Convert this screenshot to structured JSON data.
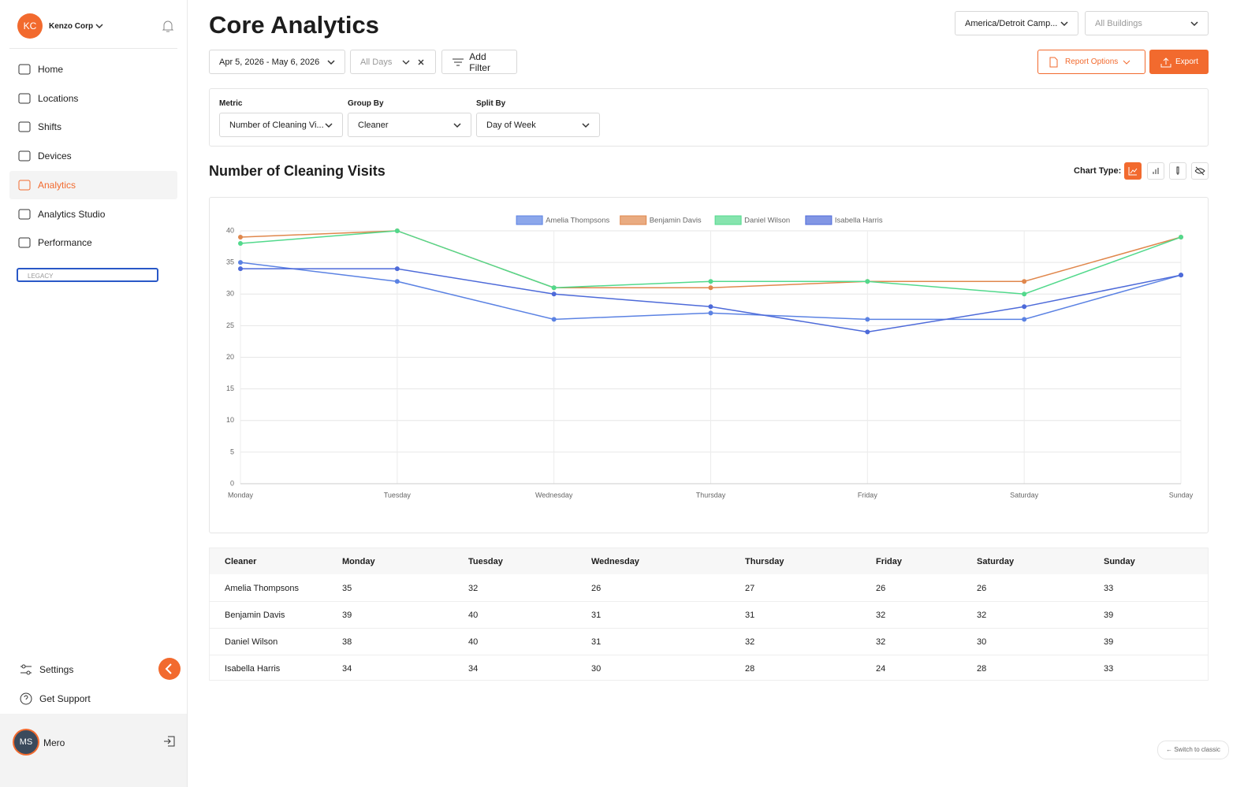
{
  "sidebar": {
    "org_initials": "KC",
    "org_name": "Kenzo Corp",
    "nav": [
      "Home",
      "Locations",
      "Shifts",
      "Devices",
      "Analytics",
      "Analytics Studio",
      "Performance"
    ],
    "legacy": "LEGACY",
    "settings": "Settings",
    "support": "Get Support",
    "user_initials": "MS",
    "user_name": "Mero"
  },
  "header": {
    "title": "Core Analytics",
    "campus": "America/Detroit Camp...",
    "buildings": "All Buildings",
    "date_range": "Apr 5, 2026 - May 6, 2026",
    "days": "All Days",
    "add_filter": "Add Filter",
    "report_options": "Report Options",
    "export": "Export"
  },
  "controls": {
    "metric_label": "Metric",
    "metric": "Number of Cleaning Vi...",
    "group_label": "Group By",
    "group": "Cleaner",
    "split_label": "Split By",
    "split": "Day of Week",
    "chart_type_label": "Chart Type:"
  },
  "chart_data": {
    "type": "line",
    "title": "Number of Cleaning Visits",
    "categories": [
      "Monday",
      "Tuesday",
      "Wednesday",
      "Thursday",
      "Friday",
      "Saturday",
      "Sunday"
    ],
    "series": [
      {
        "name": "Amelia Thompsons",
        "color": "#5b82e3",
        "values": [
          35,
          32,
          26,
          27,
          26,
          26,
          33
        ]
      },
      {
        "name": "Benjamin Davis",
        "color": "#e0874c",
        "values": [
          39,
          40,
          31,
          31,
          32,
          32,
          39
        ]
      },
      {
        "name": "Daniel Wilson",
        "color": "#52d98c",
        "values": [
          38,
          40,
          31,
          32,
          32,
          30,
          39
        ]
      },
      {
        "name": "Isabella Harris",
        "color": "#4d6ad9",
        "values": [
          34,
          34,
          30,
          28,
          24,
          28,
          33
        ]
      }
    ],
    "ylim": [
      0,
      40
    ],
    "yticks": [
      0,
      5,
      10,
      15,
      20,
      25,
      30,
      35,
      40
    ],
    "grid": true,
    "legend": "top"
  },
  "table": {
    "header": "Cleaner"
  },
  "footer": {
    "switch": "← Switch to classic"
  }
}
